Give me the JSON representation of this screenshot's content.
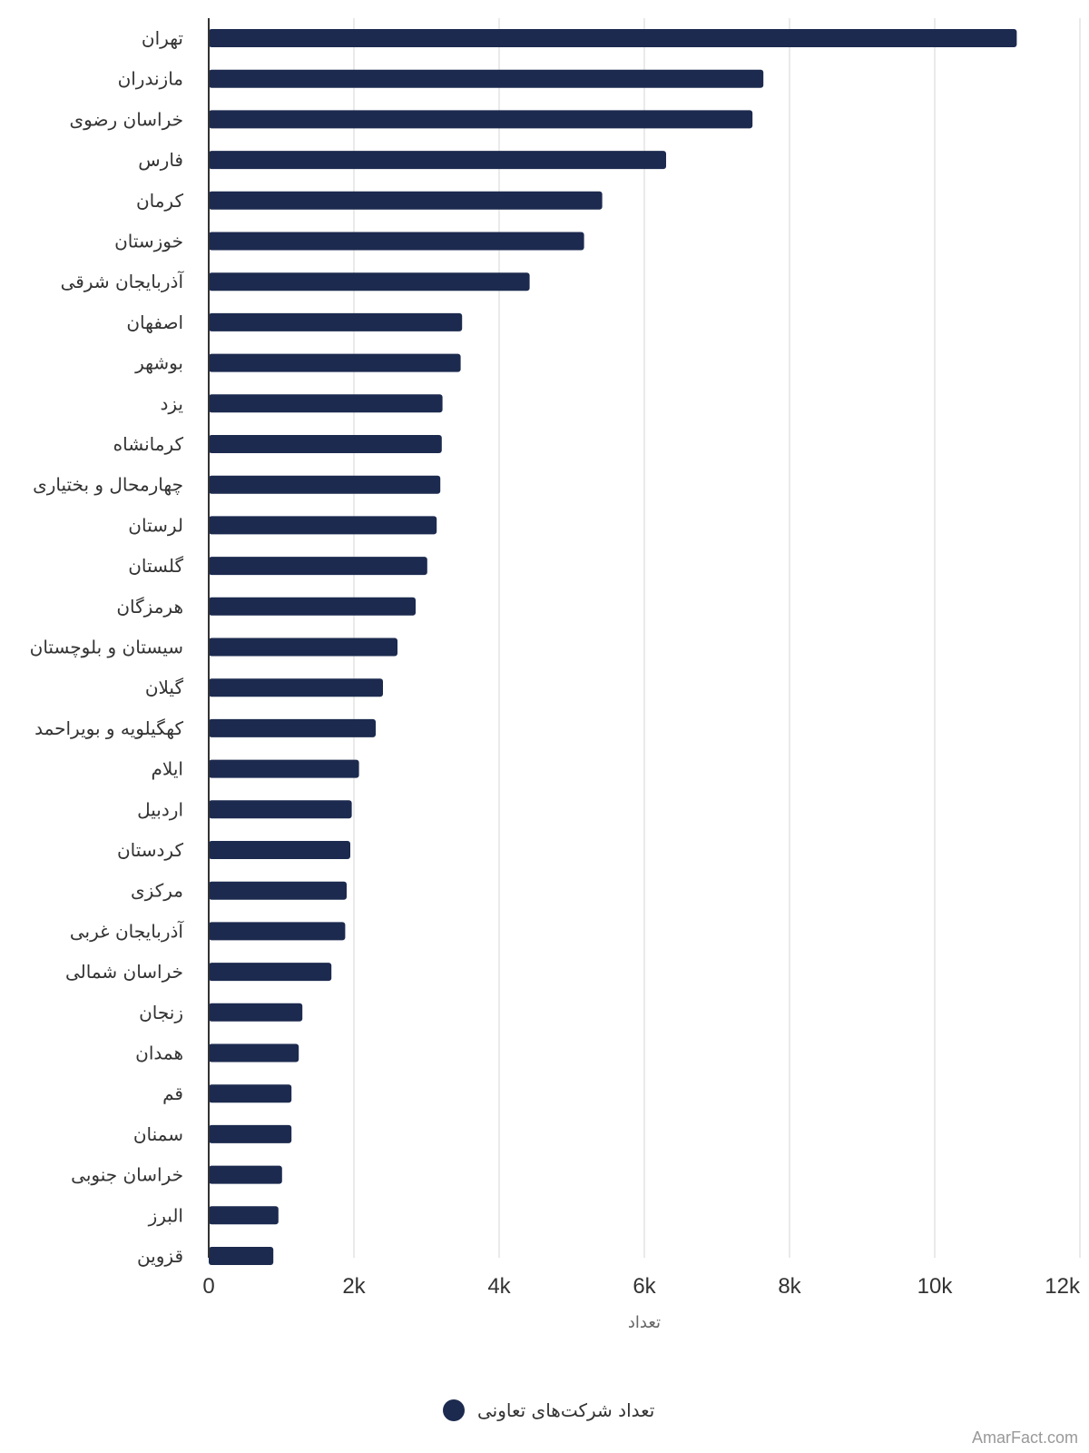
{
  "chart_data": {
    "type": "bar",
    "orientation": "horizontal",
    "categories": [
      "تهران",
      "مازندران",
      "خراسان رضوی",
      "فارس",
      "کرمان",
      "خوزستان",
      "آذربایجان شرقی",
      "اصفهان",
      "بوشهر",
      "یزد",
      "کرمانشاه",
      "چهارمحال و بختیاری",
      "لرستان",
      "گلستان",
      "هرمزگان",
      "سیستان و بلوچستان",
      "گیلان",
      "کهگیلویه و بویراحمد",
      "ایلام",
      "اردبیل",
      "کردستان",
      "مرکزی",
      "آذربایجان غربی",
      "خراسان شمالی",
      "زنجان",
      "همدان",
      "قم",
      "سمنان",
      "خراسان جنوبی",
      "البرز",
      "قزوین"
    ],
    "series": [
      {
        "name": "تعداد شرکت‌های تعاونی",
        "color": "#1c2a4f",
        "values": [
          11130,
          7640,
          7490,
          6300,
          5420,
          5170,
          4420,
          3490,
          3470,
          3220,
          3210,
          3190,
          3140,
          3010,
          2850,
          2600,
          2400,
          2300,
          2070,
          1970,
          1950,
          1900,
          1880,
          1690,
          1290,
          1240,
          1140,
          1140,
          1010,
          960,
          890
        ]
      }
    ],
    "xlabel": "تعداد",
    "ylabel": "",
    "xlim": [
      0,
      12000
    ],
    "x_ticks": [
      0,
      2000,
      4000,
      6000,
      8000,
      10000,
      12000
    ],
    "x_tick_labels": [
      "0",
      "2k",
      "4k",
      "6k",
      "8k",
      "10k",
      "12k"
    ],
    "grid": "vertical",
    "legend_position": "bottom-center"
  },
  "credit": "AmarFact.com"
}
